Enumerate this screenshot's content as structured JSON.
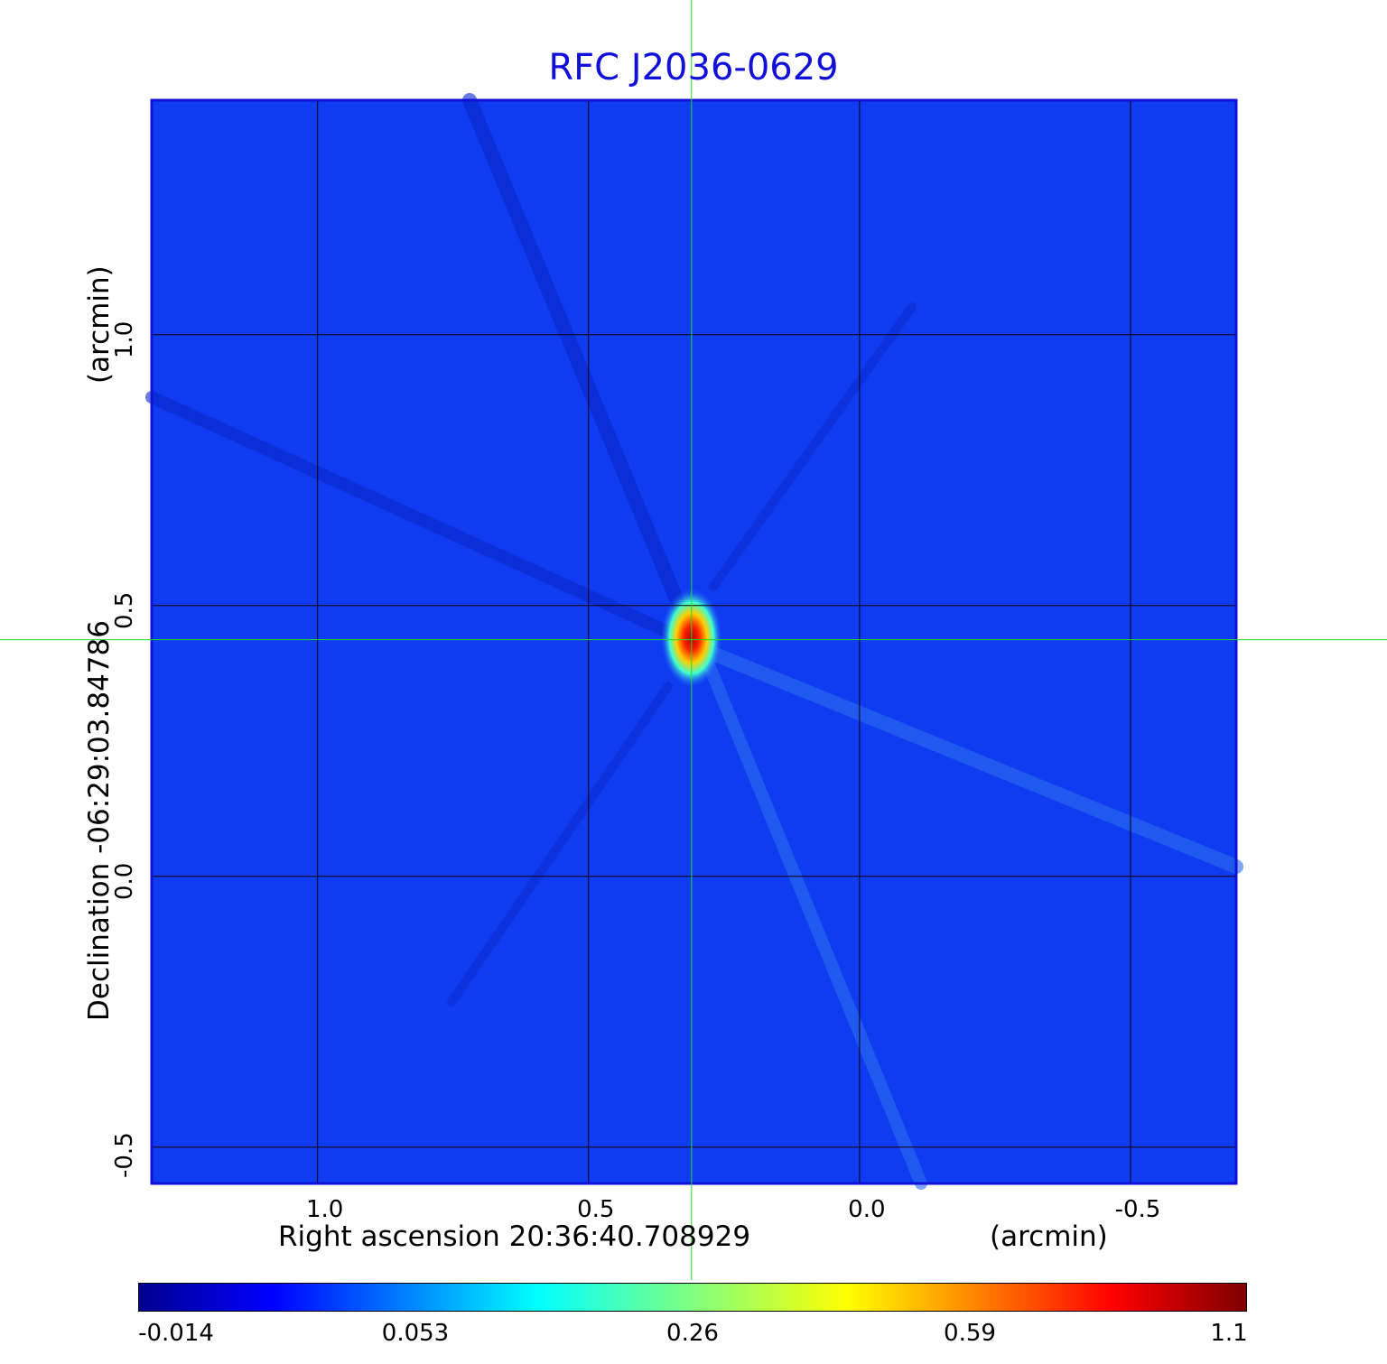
{
  "chart_data": {
    "type": "heatmap",
    "title": "RFC J2036-0629",
    "xlabel": "Right ascension  20:36:40.708929",
    "xunit": "(arcmin)",
    "ylabel": "Declination  -06:29:03.84786",
    "yunit": "(arcmin)",
    "x_ticks": [
      "1.0",
      "0.5",
      "0.0",
      "-0.5"
    ],
    "x_tick_values": [
      1.0,
      0.5,
      0.0,
      -0.5
    ],
    "y_ticks": [
      "1.0",
      "0.5",
      "0.0",
      "-0.5"
    ],
    "y_tick_values": [
      1.0,
      0.5,
      0.0,
      -0.5
    ],
    "xlim": [
      1.306,
      -0.695
    ],
    "ylim": [
      -0.567,
      1.433
    ],
    "grid": true,
    "crosshair": {
      "x": 0.31,
      "y": 0.437
    },
    "peak": {
      "x": 0.31,
      "y": 0.44,
      "value": 1.1
    },
    "colorbar_ticks": [
      "-0.014",
      "0.053",
      "0.26",
      "0.59",
      "1.1"
    ],
    "colormap": "jet",
    "colors": {
      "title": "#1010d8",
      "background": "#0f3cf0",
      "crosshair": "#22dd22",
      "grid": "#000000",
      "frame": "#1010d8"
    }
  }
}
